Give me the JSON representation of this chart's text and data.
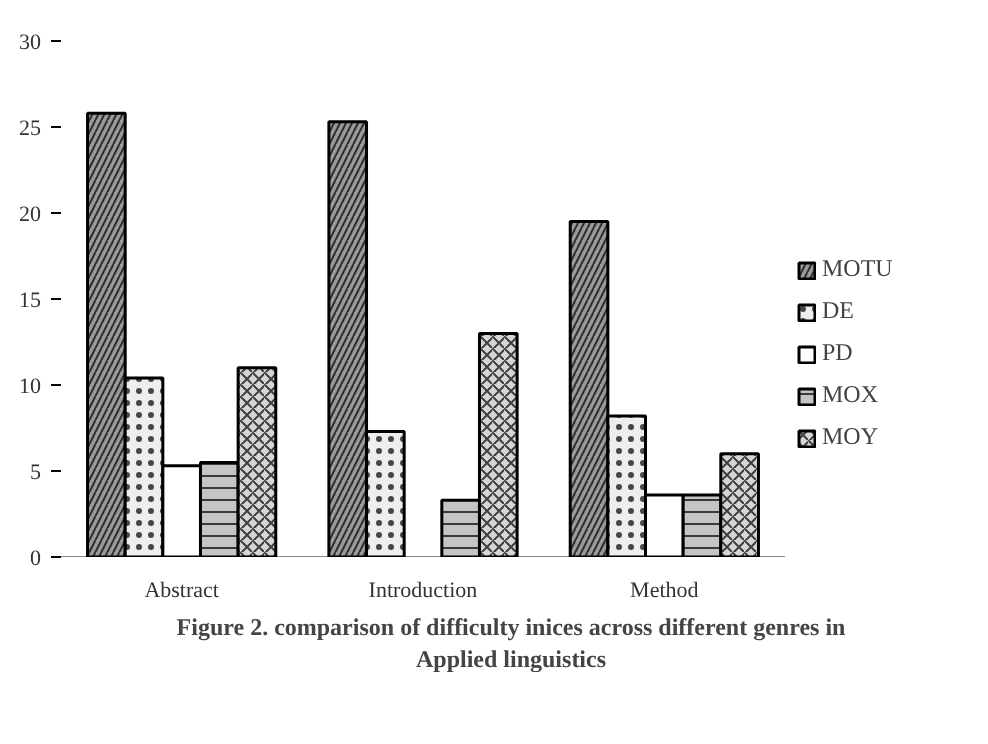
{
  "chart_data": {
    "type": "bar",
    "title": "Figure 2. comparison of difficulty inices across different genres in Applied linguistics",
    "categories": [
      "Abstract",
      "Introduction",
      "Method"
    ],
    "series": [
      {
        "name": "MOTU",
        "color": "#9a9a9a",
        "values": [
          25.8,
          25.3,
          19.5
        ]
      },
      {
        "name": "DE",
        "color": "#eeeeee",
        "values": [
          10.4,
          7.3,
          8.2
        ]
      },
      {
        "name": "PD",
        "color": "#ffffff",
        "values": [
          5.3,
          null,
          3.6
        ]
      },
      {
        "name": "MOX",
        "color": "#c4c4c4",
        "values": [
          5.5,
          3.3,
          3.6
        ]
      },
      {
        "name": "MOY",
        "color": "#d6d6d6",
        "values": [
          11.0,
          13.0,
          6.0
        ]
      }
    ],
    "ylim": [
      0,
      30
    ],
    "yticks": [
      0,
      5,
      10,
      15,
      20,
      25,
      30
    ],
    "grid": false,
    "legend": "right"
  }
}
